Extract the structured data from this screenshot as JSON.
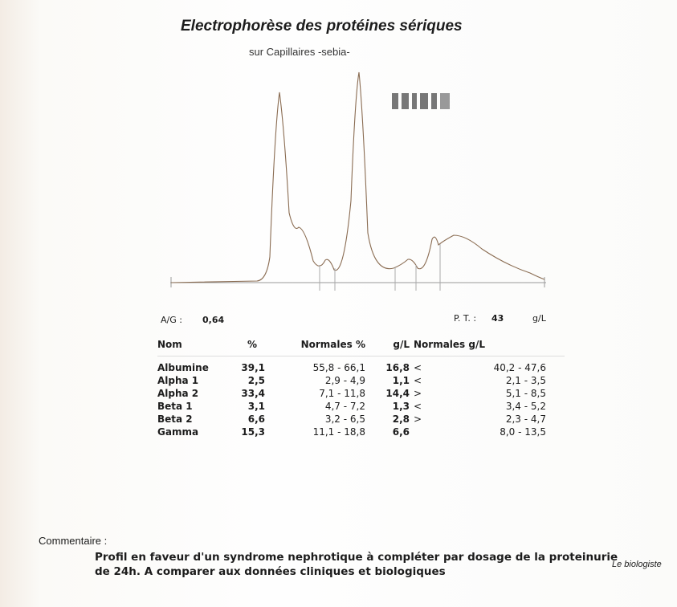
{
  "header": {
    "title": "Electrophorèse des protéines sériques",
    "subtitle": "sur Capillaires -sebia-"
  },
  "summary": {
    "ag_label": "A/G :",
    "ag_value": "0,64",
    "pt_label": "P. T. :",
    "pt_value": "43",
    "pt_unit": "g/L"
  },
  "table": {
    "columns": [
      "Nom",
      "%",
      "Normales %",
      "g/L",
      "Normales g/L"
    ],
    "rows": [
      {
        "name": "Albumine",
        "pct": "39,1",
        "normal_pct": "55,8 - 66,1",
        "gl": "16,8",
        "cmp": "<",
        "normal_gl": "40,2 - 47,6"
      },
      {
        "name": "Alpha 1",
        "pct": "2,5",
        "normal_pct": "2,9 - 4,9",
        "gl": "1,1",
        "cmp": "<",
        "normal_gl": "2,1 - 3,5"
      },
      {
        "name": "Alpha 2",
        "pct": "33,4",
        "normal_pct": "7,1 - 11,8",
        "gl": "14,4",
        "cmp": ">",
        "normal_gl": "5,1 - 8,5"
      },
      {
        "name": "Beta 1",
        "pct": "3,1",
        "normal_pct": "4,7 - 7,2",
        "gl": "1,3",
        "cmp": "<",
        "normal_gl": "3,4 - 5,2"
      },
      {
        "name": "Beta 2",
        "pct": "6,6",
        "normal_pct": "3,2 - 6,5",
        "gl": "2,8",
        "cmp": ">",
        "normal_gl": "2,3 - 4,7"
      },
      {
        "name": "Gamma",
        "pct": "15,3",
        "normal_pct": "11,1 - 18,8",
        "gl": "6,6",
        "normal_gl": "8,0 - 13,5"
      }
    ]
  },
  "comment": {
    "label": "Commentaire :",
    "lines": [
      "Profil en faveur d'un syndrome nephrotique à compléter par dosage de la proteinurie",
      "de 24h. A comparer aux données cliniques et biologiques"
    ]
  },
  "footer": {
    "signature": "Le biologiste"
  }
}
